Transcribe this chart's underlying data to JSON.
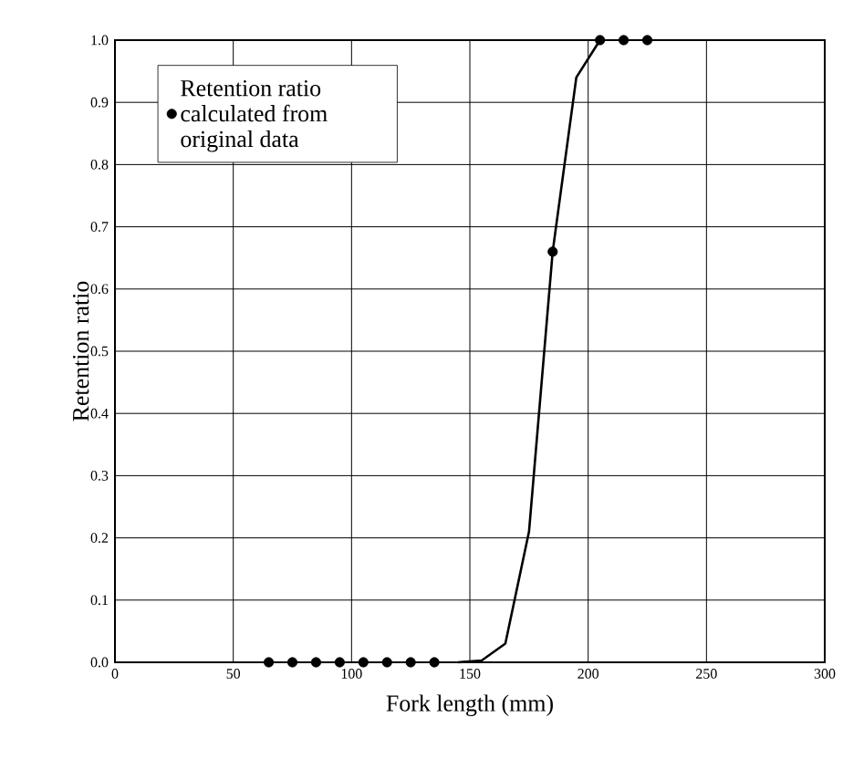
{
  "chart_data": {
    "type": "scatter",
    "xlabel": "Fork length (mm)",
    "ylabel": "Retention ratio",
    "xlim": [
      0,
      300
    ],
    "ylim": [
      0,
      1
    ],
    "xticks": [
      0,
      50,
      100,
      150,
      200,
      250,
      300
    ],
    "yticks": [
      {
        "value": 0,
        "label": "0.0"
      },
      0.1,
      0.2,
      0.3,
      0.4,
      0.5,
      0.6,
      0.7,
      0.8,
      0.9,
      {
        "value": 1,
        "label": "1.0"
      }
    ],
    "grid": true,
    "legend": "top left",
    "series": [
      {
        "name": "Retention ratio calculated from original data",
        "marker": "circle",
        "color": "#000000",
        "x": [
          65,
          75,
          85,
          95,
          105,
          115,
          125,
          135,
          185,
          205,
          215,
          225
        ],
        "values": [
          0,
          0,
          0,
          0,
          0,
          0,
          0,
          0,
          0.66,
          1.0,
          1.0,
          1.0
        ]
      },
      {
        "type": "line",
        "marker": "none",
        "color": "#000000",
        "x": [
          145,
          155,
          165,
          175,
          185,
          195,
          205
        ],
        "values": [
          0,
          0.003,
          0.03,
          0.21,
          0.66,
          0.94,
          1.0
        ]
      }
    ]
  }
}
